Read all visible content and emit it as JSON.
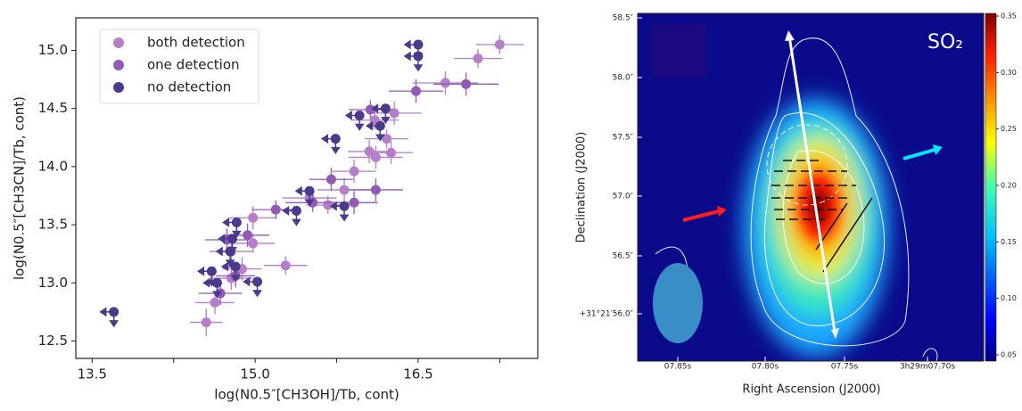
{
  "chart_data": [
    {
      "type": "scatter",
      "xlabel": "log(N0.5″[CH3OH]/Tb, cont)",
      "ylabel": "log(N0.5″[CH3CN]/Tb, cont)",
      "xlim": [
        13.35,
        17.6
      ],
      "ylim": [
        12.35,
        15.28
      ],
      "xticks": [
        13.5,
        {
          "value": 15,
          "label": "15.0"
        },
        16.5
      ],
      "xminorticks": [
        14.25,
        15.75,
        17.25
      ],
      "yticks": [
        12.5,
        {
          "value": 13,
          "label": "13.0"
        },
        13.5,
        {
          "value": 14,
          "label": "14.0"
        },
        14.5,
        {
          "value": 15,
          "label": "15.0"
        }
      ],
      "legend": "upper left",
      "series": [
        {
          "name": "both detection",
          "color": "#b57fc9",
          "x": [
            17.25,
            17.05,
            16.75,
            16.28,
            16.21,
            16.1,
            16.05,
            16.11,
            15.91,
            16.25,
            15.82,
            15.67,
            15.5,
            15.28,
            14.98,
            14.98,
            14.88,
            14.78,
            14.63,
            14.55,
            14.78
          ],
          "y": [
            15.05,
            14.93,
            14.72,
            14.46,
            14.24,
            14.4,
            14.13,
            14.08,
            13.96,
            14.12,
            13.8,
            13.67,
            13.73,
            13.15,
            13.56,
            13.34,
            13.12,
            13.04,
            12.83,
            12.66,
            13.27
          ],
          "xerr": [
            0.22,
            0.22,
            0.3,
            0.25,
            0.2,
            0.22,
            0.2,
            0.25,
            0.2,
            0.2,
            0.25,
            0.2,
            0.25,
            0.2,
            0.22,
            0.2,
            0.18,
            0.2,
            0.18,
            0.15,
            0.2
          ],
          "yerr": [
            0.08,
            0.08,
            0.1,
            0.1,
            0.08,
            0.08,
            0.1,
            0.1,
            0.1,
            0.1,
            0.1,
            0.08,
            0.08,
            0.08,
            0.1,
            0.08,
            0.1,
            0.1,
            0.1,
            0.12,
            0.1
          ]
        },
        {
          "name": "one detection",
          "color": "#9259b5",
          "x": [
            16.94,
            16.48,
            16.06,
            16.11,
            15.91,
            15.53,
            15.7,
            15.19,
            14.93,
            14.68,
            14.74,
            14.82
          ],
          "y": [
            14.71,
            14.65,
            14.49,
            13.8,
            13.69,
            13.69,
            13.89,
            13.63,
            13.41,
            12.91,
            13.37,
            13.06
          ],
          "xerr": [
            0.3,
            0.25,
            0.2,
            0.25,
            0.22,
            0.25,
            0.2,
            0.22,
            0.2,
            0.2,
            0.2,
            0.18
          ],
          "yerr": [
            0.1,
            0.1,
            0.08,
            0.1,
            0.1,
            0.08,
            0.1,
            0.08,
            0.1,
            0.1,
            0.1,
            0.1
          ]
        },
        {
          "name": "no detection",
          "color": "#4b3a8c",
          "limits": "upper",
          "x": [
            16.5,
            16.5,
            13.7,
            15.74,
            15.96,
            16.2,
            16.15,
            15.5,
            15.38,
            15.82,
            14.83,
            14.79,
            14.77,
            14.6,
            15.02,
            14.65,
            14.82
          ],
          "y": [
            15.05,
            14.95,
            12.75,
            14.24,
            14.44,
            14.5,
            14.35,
            13.79,
            13.62,
            13.66,
            13.52,
            13.38,
            13.27,
            13.1,
            13.01,
            13.0,
            13.14
          ]
        }
      ]
    },
    {
      "type": "image",
      "annotation": "SO₂",
      "xlabel": "Right Ascension (J2000)",
      "ylabel": "Declination (J2000)",
      "xticklabels": [
        "07.85s",
        "07.80s",
        "07.75s",
        "3h29m07.70s"
      ],
      "yticklabels": [
        "58.5″",
        "58.0″",
        "57.5″",
        "57.0″",
        "56.5″",
        "+31°21′56.0″"
      ],
      "clim": [
        0.05,
        0.35
      ],
      "cticks": [
        0.05,
        {
          "value": 0.1,
          "label": "0.10"
        },
        0.15,
        {
          "value": 0.2,
          "label": "0.20"
        },
        0.25,
        {
          "value": 0.3,
          "label": "0.30"
        },
        0.35
      ]
    }
  ]
}
